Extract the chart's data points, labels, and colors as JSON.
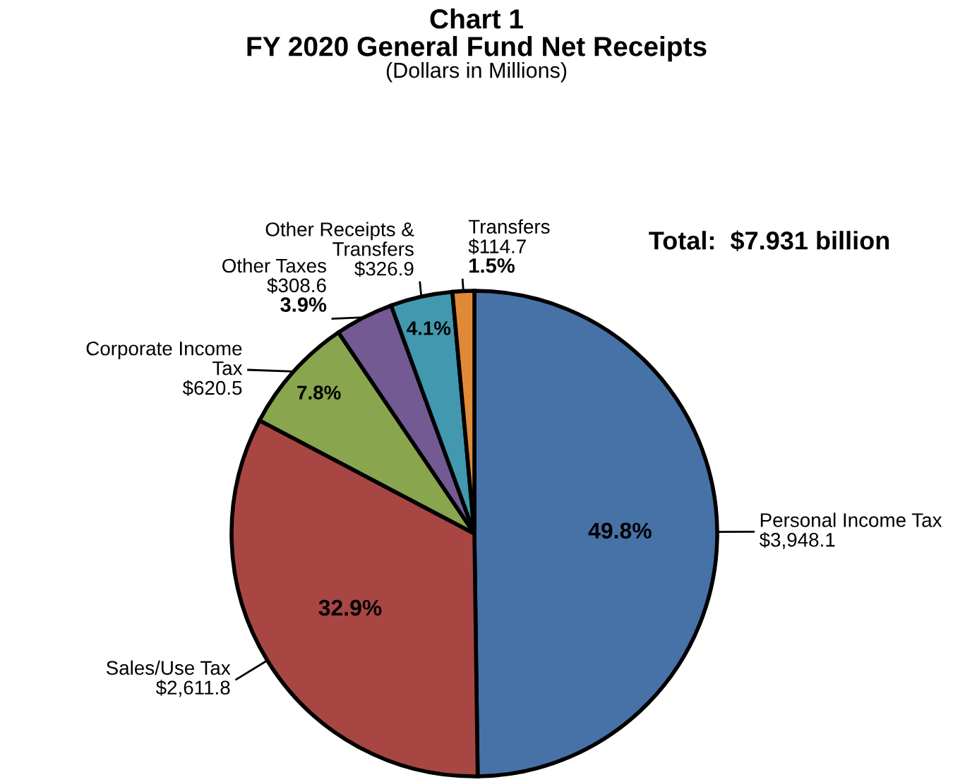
{
  "chart_data": {
    "type": "pie",
    "title": "Chart 1\nFY 2020 General Fund Net Receipts",
    "subtitle": "(Dollars in Millions)",
    "categories": [
      "Personal Income Tax",
      "Sales/Use Tax",
      "Corporate Income\nTax",
      "Other Taxes",
      "Other Receipts &\nTransfers",
      "Transfers"
    ],
    "values": [
      3948.1,
      2611.8,
      620.5,
      308.6,
      326.9,
      114.7
    ],
    "value_labels": [
      "$3,948.1",
      "$2,611.8",
      "$620.5",
      "$308.6",
      "$326.9",
      "$114.7"
    ],
    "colors": [
      "#4672a8",
      "#a84644",
      "#89a54e",
      "#735a92",
      "#4298ae",
      "#e08a38"
    ],
    "annotations": [
      "49.8%",
      "32.9%",
      "7.8%",
      "3.9%",
      "4.1%",
      "1.5%",
      "Total:  $7.931 billion"
    ]
  }
}
